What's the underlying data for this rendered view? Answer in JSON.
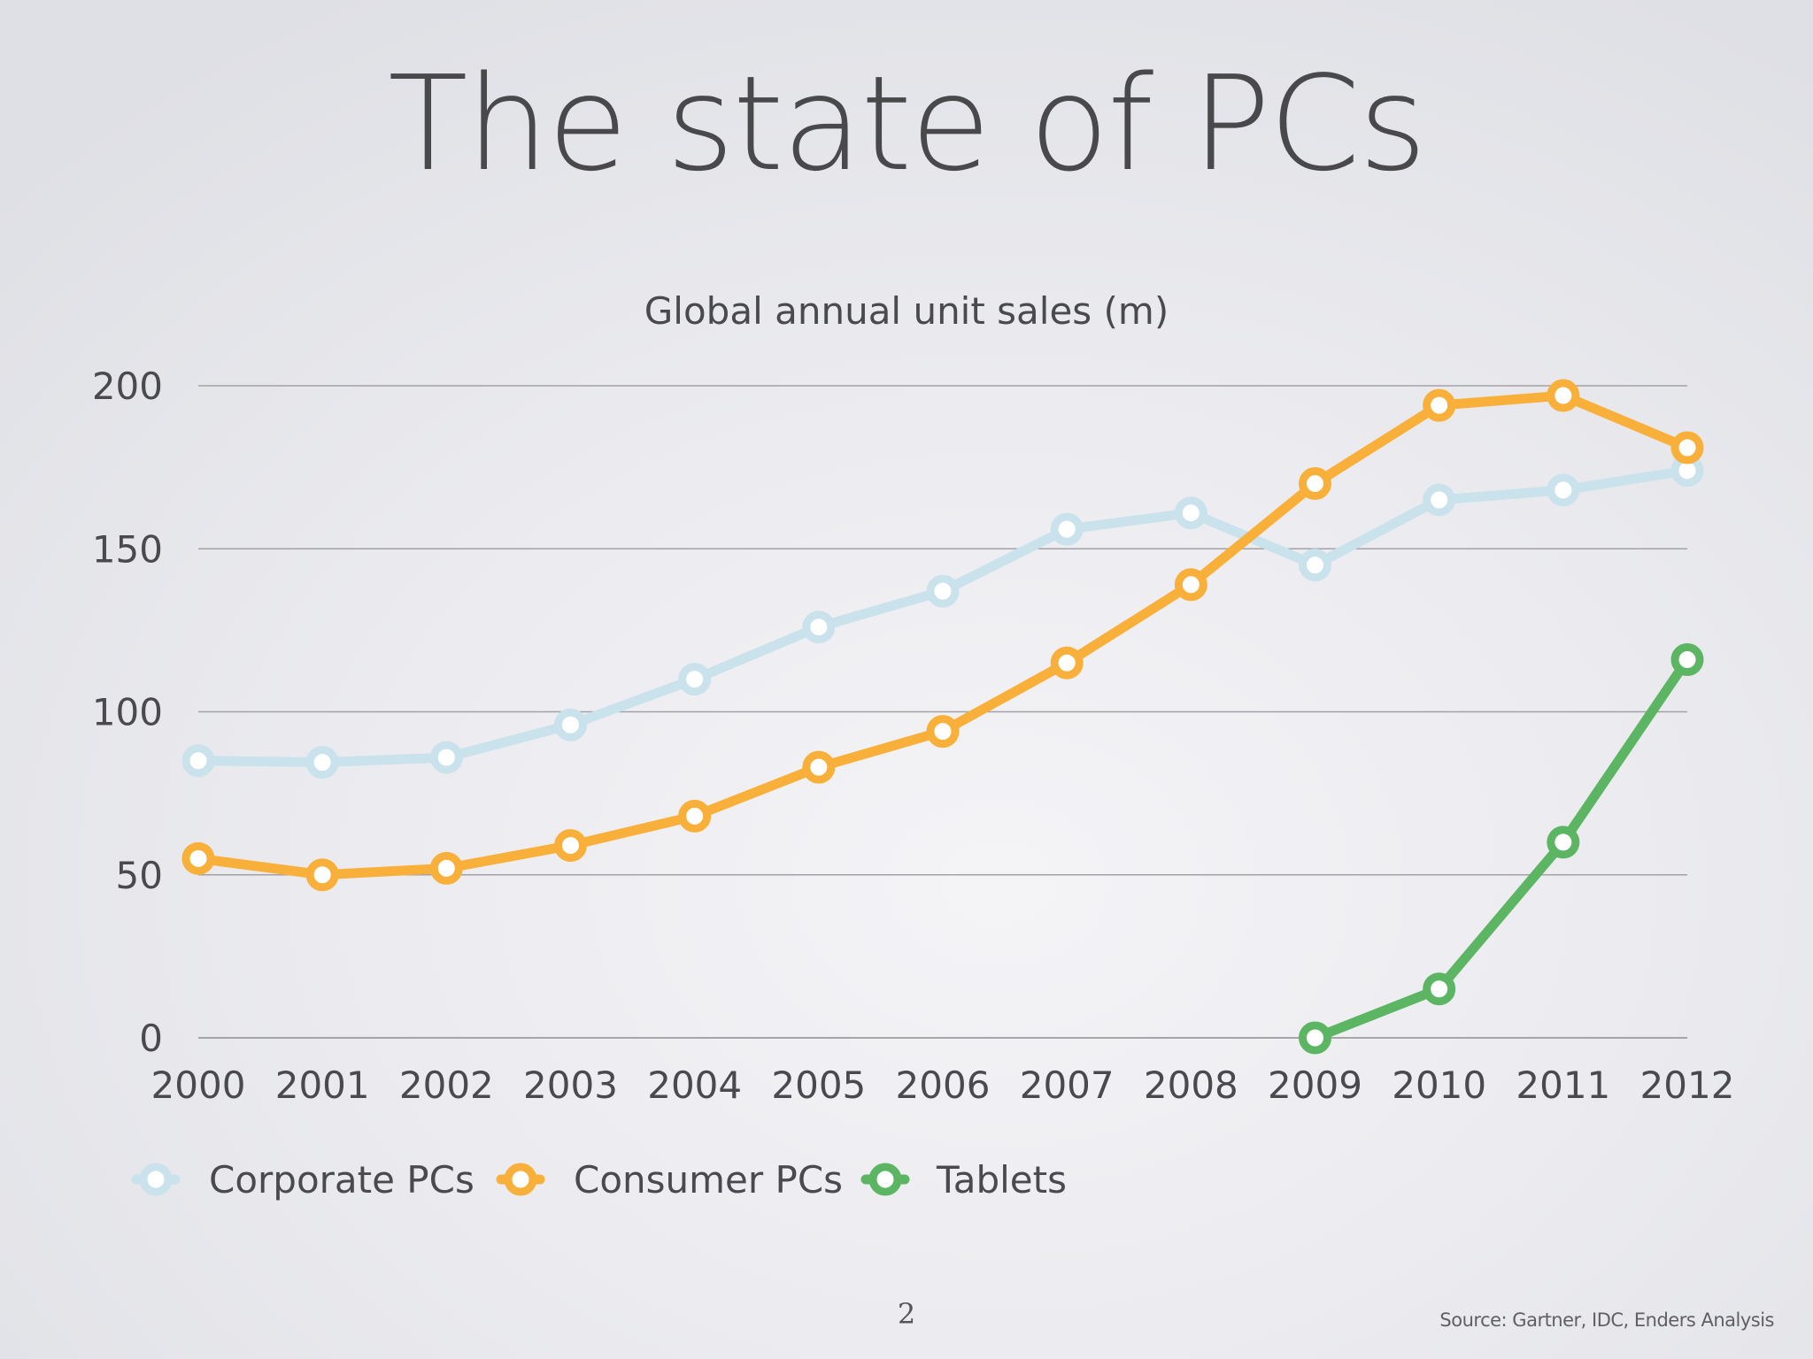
{
  "slide": {
    "title": "The state of PCs",
    "page_number": "2",
    "source": "Source: Gartner, IDC, Enders Analysis"
  },
  "chart_data": {
    "type": "line",
    "title": "Global annual unit sales (m)",
    "xlabel": "",
    "ylabel": "",
    "categories": [
      "2000",
      "2001",
      "2002",
      "2003",
      "2004",
      "2005",
      "2006",
      "2007",
      "2008",
      "2009",
      "2010",
      "2011",
      "2012"
    ],
    "yticks": [
      "0",
      "50",
      "100",
      "150",
      "200"
    ],
    "ylim": [
      0,
      200
    ],
    "grid": true,
    "legend_position": "bottom-left",
    "series": [
      {
        "name": "Corporate PCs",
        "color": "#c9e2ec",
        "values": [
          85,
          84.5,
          86,
          96,
          110,
          126,
          137,
          156,
          161,
          145,
          165,
          168,
          174
        ]
      },
      {
        "name": "Consumer PCs",
        "color": "#f8b03a",
        "values": [
          55,
          50,
          52,
          59,
          68,
          83,
          94,
          115,
          139,
          170,
          194,
          197,
          181
        ]
      },
      {
        "name": "Tablets",
        "color": "#5cb562",
        "values": [
          null,
          null,
          null,
          null,
          null,
          null,
          null,
          null,
          null,
          0,
          15,
          60,
          116
        ]
      }
    ]
  }
}
